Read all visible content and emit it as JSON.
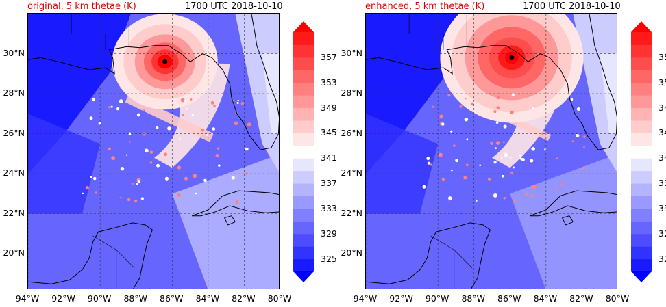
{
  "panels": [
    {
      "id": "original",
      "title_left": "original, 5 km thetae (K)",
      "title_right": "1700 UTC 2018-10-10",
      "storm_center": {
        "lon": -86.4,
        "lat": 29.6
      }
    },
    {
      "id": "enhanced",
      "title_left": "enhanced, 5 km thetae (K)",
      "title_right": "1700 UTC 2018-10-10",
      "storm_center": {
        "lon": -85.9,
        "lat": 29.8
      }
    }
  ],
  "map": {
    "lon_range": [
      -94,
      -80
    ],
    "lat_range": [
      18.2,
      32
    ],
    "lon_ticks": [
      "94°W",
      "92°W",
      "90°W",
      "88°W",
      "86°W",
      "84°W",
      "82°W",
      "80°W"
    ],
    "lat_ticks": [
      "20°N",
      "22°N",
      "24°N",
      "26°N",
      "28°N",
      "30°N"
    ],
    "gridlines": "dashed"
  },
  "colorbar": {
    "labels": [
      "325",
      "329",
      "333",
      "337",
      "341",
      "345",
      "349",
      "353",
      "357"
    ],
    "extend": "both",
    "colors": [
      "#0000ff",
      "#1a1aff",
      "#3333ff",
      "#4d4dff",
      "#6666ff",
      "#8080ff",
      "#9999ff",
      "#b3b3ff",
      "#ccccff",
      "#e6e6ff",
      "#ffffff",
      "#ffe6e6",
      "#ffcccc",
      "#ffb3b3",
      "#ff9999",
      "#ff8080",
      "#ff6666",
      "#ff4d4d",
      "#ff3333",
      "#ff1a1a",
      "#ff0000"
    ]
  }
}
